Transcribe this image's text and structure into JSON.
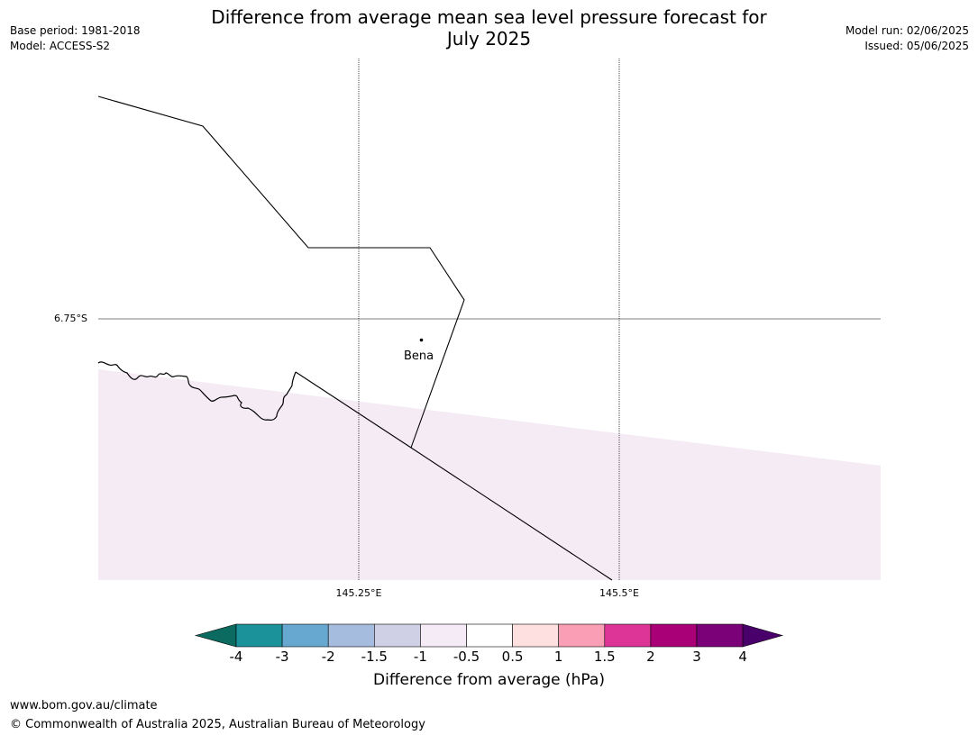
{
  "title": {
    "line1": "Difference from average mean sea level pressure forecast for",
    "line2": "July 2025"
  },
  "meta_left": {
    "base_period": "Base period: 1981-2018",
    "model": "Model: ACCESS-S2"
  },
  "meta_right": {
    "model_run": "Model run: 02/06/2025",
    "issued": "Issued: 05/06/2025"
  },
  "map": {
    "lat_label": "6.75°S",
    "lon_labels": [
      "145.25°E",
      "145.5°E"
    ],
    "place_label": "Bena",
    "shading_category": "-1 to -0.5"
  },
  "colorbar": {
    "title": "Difference from average (hPa)",
    "tick_labels": [
      "-4",
      "-3",
      "-2",
      "-1.5",
      "-1",
      "-0.5",
      "0.5",
      "1",
      "1.5",
      "2",
      "3",
      "4"
    ],
    "colors": [
      "#0b6b60",
      "#1b9299",
      "#66a8d0",
      "#a6bcde",
      "#cfd0e6",
      "#f4ebf6",
      "#ffffff",
      "#fde0df",
      "#f99eb5",
      "#dc3597",
      "#aa0077",
      "#7a0177",
      "#4a006a"
    ]
  },
  "footer": {
    "url": "www.bom.gov.au/climate",
    "copyright": "© Commonwealth of Australia 2025, Australian Bureau of Meteorology"
  }
}
